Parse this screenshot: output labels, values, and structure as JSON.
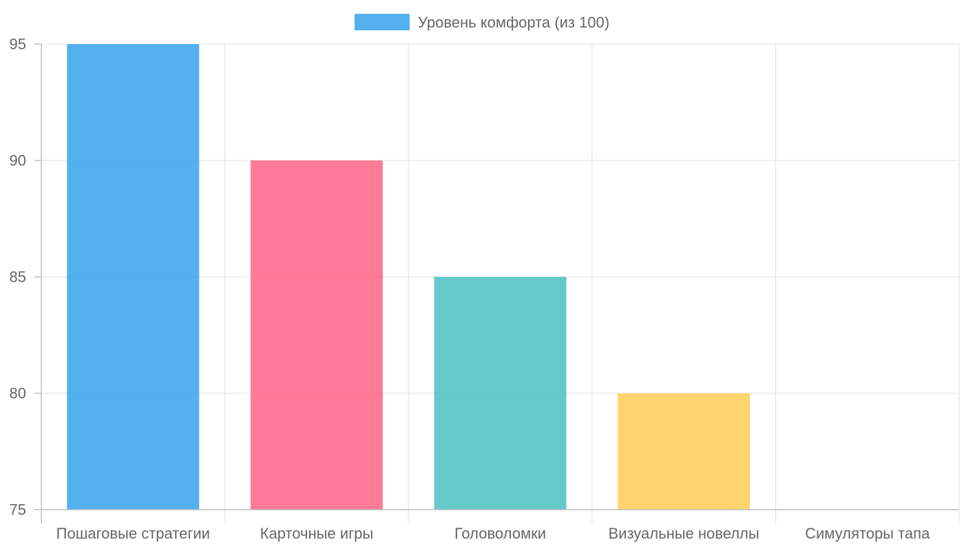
{
  "chart_data": {
    "type": "bar",
    "categories": [
      "Пошаговые стратегии",
      "Карточные игры",
      "Головоломки",
      "Визуальные новеллы",
      "Симуляторы тапа"
    ],
    "series": [
      {
        "name": "Уровень комфорта (из 100)",
        "values": [
          95,
          90,
          85,
          80,
          75
        ]
      }
    ],
    "bar_colors": [
      "#36a2eb",
      "#ff6384",
      "#4bc0c0",
      "#ffcd56",
      "#9966ff"
    ],
    "legend_color": "#36a2eb",
    "ylim": [
      75,
      95
    ],
    "yticks": [
      75,
      80,
      85,
      90,
      95
    ],
    "grid": true,
    "legend_position": "top-center"
  }
}
